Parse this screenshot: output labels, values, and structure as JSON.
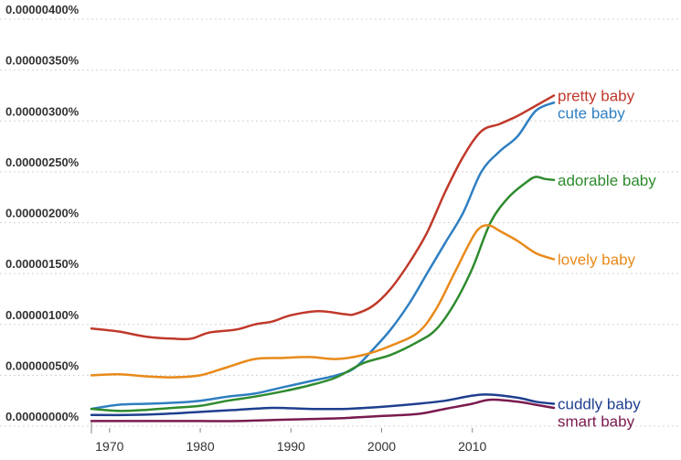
{
  "chart_data": {
    "type": "line",
    "ylim": [
      0,
      4e-06
    ],
    "xlim": [
      1968,
      2019
    ],
    "y_ticks": [
      "0.00000000%",
      "0.00000050%",
      "0.00000100%",
      "0.00000150%",
      "0.00000200%",
      "0.00000250%",
      "0.00000300%",
      "0.00000350%",
      "0.00000400%"
    ],
    "y_tick_values": [
      0,
      5e-07,
      1e-06,
      1.5e-06,
      2e-06,
      2.5e-06,
      3e-06,
      3.5e-06,
      4e-06
    ],
    "x_ticks": [
      "1970",
      "1980",
      "1990",
      "2000",
      "2010"
    ],
    "x_tick_values": [
      1970,
      1980,
      1990,
      2000,
      2010
    ],
    "grid": "horizontal",
    "legend": "direct labels at right end of lines",
    "series": [
      {
        "name": "pretty baby",
        "color": "#c0392b",
        "x": [
          1968,
          1971,
          1974,
          1977,
          1979,
          1981,
          1984,
          1986,
          1988,
          1990,
          1993,
          1996,
          1997,
          1999,
          2001,
          2003,
          2005,
          2007,
          2009,
          2011,
          2013,
          2015,
          2017,
          2019
        ],
        "y": [
          9.6e-07,
          9.3e-07,
          8.8e-07,
          8.6e-07,
          8.6e-07,
          9.2e-07,
          9.5e-07,
          1e-06,
          1.03e-06,
          1.09e-06,
          1.13e-06,
          1.1e-06,
          1.1e-06,
          1.18e-06,
          1.35e-06,
          1.6e-06,
          1.9e-06,
          2.3e-06,
          2.65e-06,
          2.9e-06,
          2.97e-06,
          3.05e-06,
          3.15e-06,
          3.25e-06
        ]
      },
      {
        "name": "cute baby",
        "color": "#2f7fc1",
        "x": [
          1968,
          1971,
          1974,
          1977,
          1980,
          1983,
          1986,
          1989,
          1992,
          1995,
          1997,
          1999,
          2001,
          2003,
          2005,
          2007,
          2009,
          2011,
          2013,
          2015,
          2017,
          2019
        ],
        "y": [
          1.7e-07,
          2.1e-07,
          2.2e-07,
          2.3e-07,
          2.5e-07,
          2.9e-07,
          3.2e-07,
          3.8e-07,
          4.4e-07,
          5e-07,
          5.7e-07,
          7.5e-07,
          9.5e-07,
          1.2e-06,
          1.5e-06,
          1.8e-06,
          2.1e-06,
          2.5e-06,
          2.7e-06,
          2.85e-06,
          3.1e-06,
          3.18e-06
        ]
      },
      {
        "name": "adorable baby",
        "color": "#2e8b2e",
        "x": [
          1968,
          1971,
          1974,
          1977,
          1980,
          1983,
          1986,
          1989,
          1992,
          1995,
          1998,
          2001,
          2004,
          2006,
          2008,
          2010,
          2012,
          2014,
          2016,
          2017,
          2018,
          2019
        ],
        "y": [
          1.7e-07,
          1.5e-07,
          1.6e-07,
          1.8e-07,
          2e-07,
          2.5e-07,
          2.9e-07,
          3.4e-07,
          4e-07,
          4.8e-07,
          6.2e-07,
          7e-07,
          8.3e-07,
          9.5e-07,
          1.2e-06,
          1.55e-06,
          2e-06,
          2.25e-06,
          2.4e-06,
          2.45e-06,
          2.43e-06,
          2.42e-06
        ]
      },
      {
        "name": "lovely baby",
        "color": "#e88a1a",
        "x": [
          1968,
          1971,
          1974,
          1977,
          1980,
          1983,
          1986,
          1989,
          1992,
          1995,
          1998,
          2001,
          2004,
          2006,
          2008,
          2010,
          2011,
          2012,
          2013,
          2015,
          2017,
          2019
        ],
        "y": [
          5e-07,
          5.1e-07,
          4.9e-07,
          4.8e-07,
          5e-07,
          5.8e-07,
          6.6e-07,
          6.7e-07,
          6.8e-07,
          6.6e-07,
          7e-07,
          7.9e-07,
          9.2e-07,
          1.15e-06,
          1.5e-06,
          1.85e-06,
          1.96e-06,
          1.97e-06,
          1.92e-06,
          1.82e-06,
          1.7e-06,
          1.64e-06
        ]
      },
      {
        "name": "cuddly baby",
        "color": "#1f3f8f",
        "x": [
          1968,
          1972,
          1976,
          1980,
          1984,
          1988,
          1992,
          1996,
          2000,
          2004,
          2007,
          2010,
          2012,
          2015,
          2017,
          2019
        ],
        "y": [
          1.1e-07,
          1.1e-07,
          1.2e-07,
          1.4e-07,
          1.6e-07,
          1.8e-07,
          1.7e-07,
          1.7e-07,
          1.9e-07,
          2.2e-07,
          2.5e-07,
          3e-07,
          3.1e-07,
          2.8e-07,
          2.4e-07,
          2.2e-07
        ]
      },
      {
        "name": "smart baby",
        "color": "#7a1a4f",
        "x": [
          1968,
          1972,
          1976,
          1980,
          1984,
          1988,
          1992,
          1996,
          2000,
          2004,
          2007,
          2010,
          2012,
          2015,
          2017,
          2019
        ],
        "y": [
          5e-08,
          5e-08,
          5e-08,
          5e-08,
          5e-08,
          6e-08,
          7e-08,
          8e-08,
          1e-07,
          1.2e-07,
          1.7e-07,
          2.2e-07,
          2.6e-07,
          2.4e-07,
          2.1e-07,
          1.8e-07
        ]
      }
    ]
  }
}
